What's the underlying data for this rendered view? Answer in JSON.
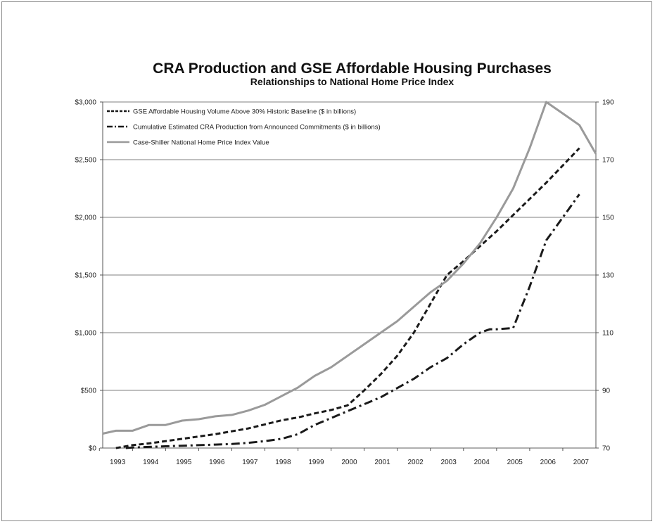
{
  "chart_data": {
    "type": "line",
    "title": "CRA Production and GSE Affordable Housing Purchases",
    "subtitle": "Relationships to National Home Price Index",
    "x_ticks": [
      "1993",
      "1994",
      "1995",
      "1996",
      "1997",
      "1998",
      "1999",
      "2000",
      "2001",
      "2002",
      "2003",
      "2004",
      "2005",
      "2006",
      "2007"
    ],
    "y_left_ticks": [
      "$0",
      "$500",
      "$1,000",
      "$1,500",
      "$2,000",
      "$2,500",
      "$3,000"
    ],
    "y_right_ticks": [
      "70",
      "90",
      "110",
      "130",
      "150",
      "170",
      "190"
    ],
    "y_left_range": [
      0,
      3000
    ],
    "y_right_range": [
      70,
      190
    ],
    "x_range": [
      1992.6,
      2007.5
    ],
    "grid": "horizontal",
    "legend_placement": "top-left",
    "series": [
      {
        "name": "GSE Affordable Housing Volume Above 30% Historic Baseline ($ in billions)",
        "axis": "left",
        "style": "dashed",
        "color": "#1a1a1a",
        "x": [
          1993.0,
          1993.5,
          1994.0,
          1994.5,
          1995.0,
          1995.5,
          1996.0,
          1996.5,
          1997.0,
          1997.5,
          1998.0,
          1998.5,
          1999.0,
          1999.5,
          2000.0,
          2000.5,
          2001.0,
          2001.5,
          2002.0,
          2002.5,
          2003.0,
          2003.5,
          2004.0,
          2004.5,
          2005.0,
          2005.5,
          2006.0,
          2006.5,
          2007.0
        ],
        "values": [
          0,
          25,
          40,
          60,
          80,
          100,
          120,
          145,
          170,
          205,
          240,
          265,
          300,
          330,
          370,
          500,
          640,
          800,
          1000,
          1250,
          1500,
          1620,
          1750,
          1880,
          2020,
          2160,
          2300,
          2450,
          2600
        ]
      },
      {
        "name": "Cumulative Estimated CRA Production from Announced Commitments ($ in billions)",
        "axis": "left",
        "style": "dash-dot",
        "color": "#1a1a1a",
        "x": [
          1993.3,
          1993.5,
          1994.0,
          1994.5,
          1995.0,
          1995.5,
          1996.0,
          1996.5,
          1997.0,
          1997.5,
          1998.0,
          1998.5,
          1999.0,
          1999.5,
          2000.0,
          2000.5,
          2001.0,
          2001.5,
          2002.0,
          2002.5,
          2003.0,
          2003.5,
          2004.0,
          2004.3,
          2004.5,
          2005.0,
          2005.5,
          2006.0,
          2006.5,
          2007.0
        ],
        "values": [
          0,
          5,
          10,
          15,
          20,
          25,
          30,
          35,
          45,
          60,
          80,
          120,
          200,
          260,
          320,
          380,
          440,
          520,
          600,
          700,
          780,
          900,
          1000,
          1030,
          1030,
          1040,
          1400,
          1800,
          2000,
          2200
        ]
      },
      {
        "name": "Case-Shiller National Home Price Index Value",
        "axis": "right",
        "style": "solid",
        "color": "#9a9a9a",
        "x": [
          1992.6,
          1993.0,
          1993.5,
          1994.0,
          1994.5,
          1995.0,
          1995.5,
          1996.0,
          1996.5,
          1997.0,
          1997.5,
          1998.0,
          1998.5,
          1999.0,
          1999.5,
          2000.0,
          2000.5,
          2001.0,
          2001.5,
          2002.0,
          2002.5,
          2003.0,
          2003.5,
          2004.0,
          2004.5,
          2005.0,
          2005.5,
          2006.0,
          2006.5,
          2007.0,
          2007.5
        ],
        "values": [
          75,
          76,
          76,
          78,
          78,
          79.5,
          80,
          81,
          81.5,
          83,
          85,
          88,
          91,
          95,
          98,
          102,
          106,
          110,
          114,
          119,
          124,
          128,
          134,
          141,
          150,
          160,
          174,
          190,
          186,
          182,
          172
        ]
      }
    ]
  }
}
